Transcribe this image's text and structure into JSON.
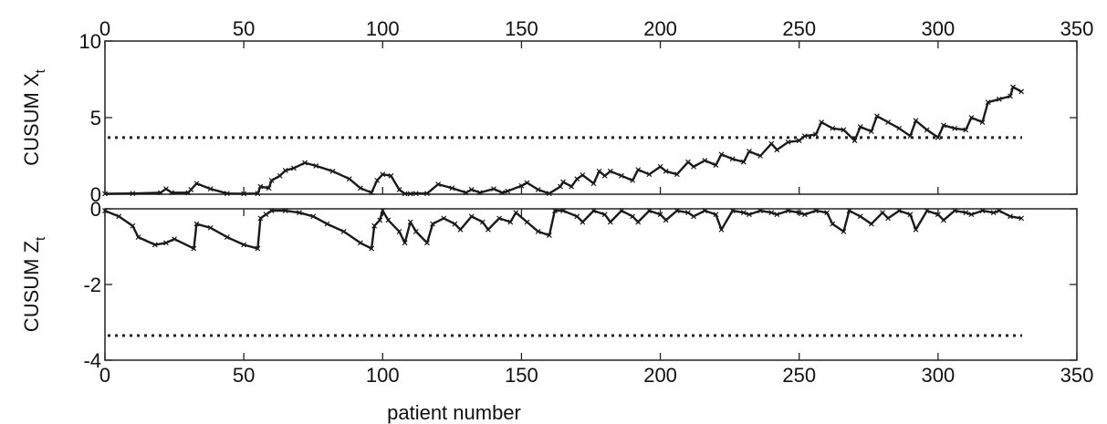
{
  "chart_data": [
    {
      "type": "line",
      "ylabel": "CUSUM X",
      "ylabel_sub": "t",
      "xlim": [
        0,
        350
      ],
      "ylim": [
        0,
        10
      ],
      "xticks": [
        0,
        50,
        100,
        150,
        200,
        250,
        300,
        350
      ],
      "xtick_position": "top",
      "yticks": [
        0,
        5,
        10
      ],
      "threshold": 3.7,
      "grid": false,
      "series": [
        {
          "x": [
            0,
            10,
            20,
            22,
            24,
            30,
            31,
            33,
            38,
            44,
            50,
            55,
            56,
            59,
            60,
            63,
            65,
            68,
            72,
            76,
            82,
            88,
            92,
            96,
            98,
            100,
            103,
            106,
            108,
            110,
            112,
            116,
            120,
            125,
            130,
            132,
            135,
            140,
            143,
            145,
            150,
            152,
            156,
            160,
            164,
            165,
            168,
            170,
            172,
            176,
            178,
            180,
            182,
            186,
            190,
            192,
            196,
            200,
            202,
            206,
            210,
            212,
            216,
            220,
            222,
            226,
            230,
            232,
            236,
            240,
            242,
            246,
            250,
            252,
            256,
            258,
            262,
            266,
            270,
            272,
            276,
            278,
            282,
            286,
            290,
            292,
            296,
            300,
            302,
            306,
            310,
            312,
            316,
            318,
            322,
            326,
            327,
            330
          ],
          "y": [
            0.03,
            0.05,
            0.1,
            0.35,
            0.1,
            0.1,
            0.3,
            0.7,
            0.35,
            0.05,
            0.03,
            0.05,
            0.5,
            0.4,
            0.9,
            1.2,
            1.55,
            1.7,
            2.05,
            1.85,
            1.5,
            1.0,
            0.4,
            0.1,
            0.9,
            1.3,
            1.2,
            0.3,
            0.03,
            0.03,
            0.05,
            0.05,
            0.65,
            0.4,
            0.1,
            0.3,
            0.1,
            0.35,
            0.1,
            0.2,
            0.55,
            0.75,
            0.3,
            0.05,
            0.5,
            0.8,
            0.5,
            1.0,
            1.25,
            0.7,
            1.5,
            1.2,
            1.5,
            1.2,
            0.9,
            1.6,
            1.3,
            1.8,
            1.5,
            1.3,
            2.1,
            1.8,
            2.2,
            1.9,
            2.6,
            2.3,
            2.1,
            2.8,
            2.5,
            3.3,
            2.9,
            3.4,
            3.5,
            3.8,
            3.9,
            4.7,
            4.3,
            4.2,
            3.5,
            4.4,
            4.1,
            5.1,
            4.7,
            4.3,
            3.8,
            4.8,
            4.2,
            3.7,
            4.5,
            4.3,
            4.2,
            5.0,
            4.7,
            6.0,
            6.2,
            6.4,
            7.0,
            6.7
          ]
        }
      ]
    },
    {
      "type": "line",
      "ylabel": "CUSUM Z",
      "ylabel_sub": "t",
      "xlabel": "patient number",
      "xlim": [
        0,
        350
      ],
      "ylim": [
        -4,
        0
      ],
      "xticks": [
        0,
        50,
        100,
        150,
        200,
        250,
        300,
        350
      ],
      "yticks": [
        0,
        -2,
        -4
      ],
      "threshold": -3.35,
      "grid": false,
      "series": [
        {
          "x": [
            0,
            5,
            10,
            12,
            18,
            22,
            25,
            32,
            33,
            38,
            44,
            50,
            55,
            56,
            58,
            60,
            65,
            70,
            75,
            80,
            86,
            92,
            96,
            97,
            99,
            100,
            102,
            106,
            108,
            110,
            112,
            116,
            118,
            122,
            126,
            128,
            132,
            136,
            138,
            142,
            146,
            148,
            152,
            156,
            160,
            162,
            165,
            170,
            172,
            176,
            180,
            182,
            186,
            190,
            192,
            196,
            200,
            202,
            206,
            210,
            212,
            216,
            220,
            222,
            226,
            230,
            232,
            236,
            240,
            242,
            246,
            250,
            252,
            256,
            260,
            262,
            266,
            268,
            272,
            276,
            280,
            282,
            286,
            290,
            292,
            296,
            300,
            302,
            306,
            310,
            312,
            316,
            320,
            322,
            326,
            330
          ],
          "y": [
            -0.05,
            -0.2,
            -0.45,
            -0.75,
            -0.95,
            -0.9,
            -0.8,
            -1.05,
            -0.4,
            -0.5,
            -0.75,
            -0.95,
            -1.05,
            -0.25,
            -0.15,
            -0.05,
            -0.05,
            -0.1,
            -0.2,
            -0.4,
            -0.6,
            -0.9,
            -1.05,
            -0.45,
            -0.3,
            -0.05,
            -0.3,
            -0.6,
            -0.9,
            -0.35,
            -0.6,
            -0.9,
            -0.4,
            -0.25,
            -0.4,
            -0.55,
            -0.2,
            -0.35,
            -0.55,
            -0.25,
            -0.35,
            -0.1,
            -0.35,
            -0.6,
            -0.7,
            -0.05,
            -0.05,
            -0.2,
            -0.35,
            -0.05,
            -0.15,
            -0.35,
            -0.05,
            -0.2,
            -0.35,
            -0.05,
            -0.15,
            -0.3,
            -0.05,
            -0.1,
            -0.2,
            -0.05,
            -0.15,
            -0.55,
            -0.05,
            -0.1,
            -0.15,
            -0.05,
            -0.1,
            -0.15,
            -0.05,
            -0.1,
            -0.15,
            -0.05,
            -0.1,
            -0.4,
            -0.6,
            -0.05,
            -0.2,
            -0.4,
            -0.1,
            -0.25,
            -0.05,
            -0.15,
            -0.55,
            -0.05,
            -0.15,
            -0.3,
            -0.05,
            -0.1,
            -0.15,
            -0.05,
            -0.1,
            -0.05,
            -0.2,
            -0.25
          ]
        }
      ]
    }
  ]
}
